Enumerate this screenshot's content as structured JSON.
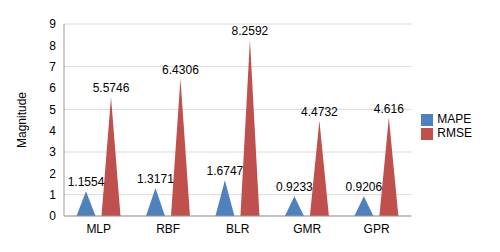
{
  "chart_data": {
    "type": "bar",
    "categories": [
      "MLP",
      "RBF",
      "BLR",
      "GMR",
      "GPR"
    ],
    "series": [
      {
        "name": "MAPE",
        "color": "#4f81bd",
        "values": [
          1.1554,
          1.3171,
          1.6747,
          0.9233,
          0.9206
        ]
      },
      {
        "name": "RMSE",
        "color": "#c0504d",
        "values": [
          5.5746,
          6.4306,
          8.2592,
          4.4732,
          4.616
        ]
      }
    ],
    "ylabel": "Magnitude",
    "ylim": [
      0,
      9
    ],
    "yticks": [
      0,
      1,
      2,
      3,
      4,
      5,
      6,
      7,
      8,
      9
    ],
    "grid": true,
    "legend": "right",
    "data_labels": true
  }
}
